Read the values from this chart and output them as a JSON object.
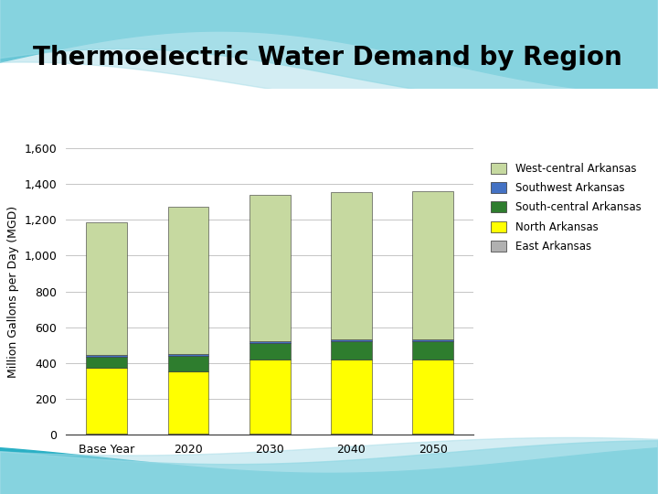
{
  "title": "Thermoelectric Water Demand by Region",
  "ylabel": "Million Gallons per Day (MGD)",
  "categories": [
    "Base Year",
    "2020",
    "2030",
    "2040",
    "2050"
  ],
  "series": {
    "East Arkansas": [
      5,
      5,
      5,
      5,
      5
    ],
    "North Arkansas": [
      370,
      348,
      415,
      415,
      415
    ],
    "South-central Arkansas": [
      58,
      88,
      92,
      100,
      100
    ],
    "Southwest Arkansas": [
      10,
      10,
      10,
      10,
      10
    ],
    "West-central Arkansas": [
      742,
      824,
      818,
      825,
      830
    ]
  },
  "colors": {
    "East Arkansas": "#b0b0b0",
    "North Arkansas": "#ffff00",
    "South-central Arkansas": "#2e7d2e",
    "Southwest Arkansas": "#4472c4",
    "West-central Arkansas": "#c6d9a0"
  },
  "order": [
    "East Arkansas",
    "North Arkansas",
    "South-central Arkansas",
    "Southwest Arkansas",
    "West-central Arkansas"
  ],
  "legend_order": [
    "West-central Arkansas",
    "Southwest Arkansas",
    "South-central Arkansas",
    "North Arkansas",
    "East Arkansas"
  ],
  "ylim": [
    0,
    1600
  ],
  "yticks": [
    0,
    200,
    400,
    600,
    800,
    1000,
    1200,
    1400,
    1600
  ],
  "background_color": "#ffffff",
  "slide_bg": "#f0f0f0",
  "bar_width": 0.5,
  "title_fontsize": 20,
  "axis_fontsize": 9,
  "tick_fontsize": 9,
  "legend_fontsize": 8.5,
  "wave_color_dark": "#2ab0c5",
  "wave_color_light": "#7fd4e0"
}
